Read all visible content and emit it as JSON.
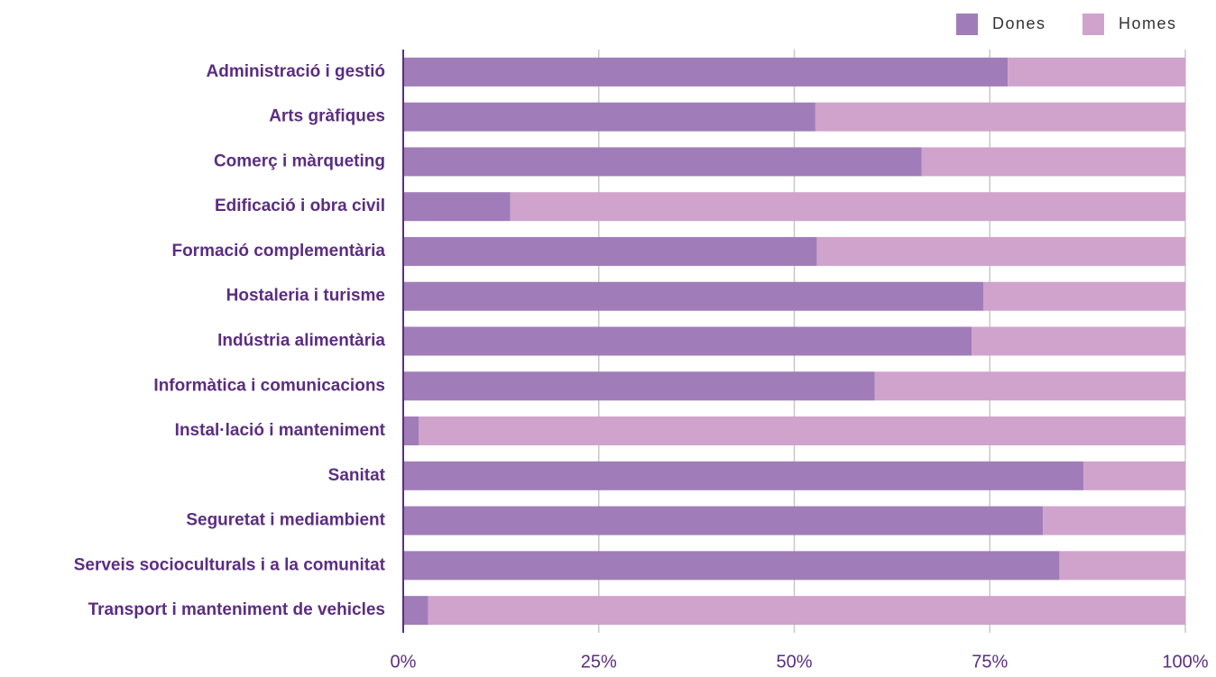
{
  "chart_data": {
    "type": "stacked-bar-horizontal",
    "categories": [
      "Administració i gestió",
      "Arts gràfiques",
      "Comerç i màrqueting",
      "Edificació i obra civil",
      "Formació complementària",
      "Hostaleria i turisme",
      "Indústria alimentària",
      "Informàtica i comunicacions",
      "Instal·lació i manteniment",
      "Sanitat",
      "Seguretat i mediambient",
      "Serveis socioculturals i a la comunitat",
      "Transport i manteniment de vehicles"
    ],
    "series": [
      {
        "name": "Dones",
        "color": "#a07db8",
        "values": [
          77.3,
          52.7,
          66.3,
          13.7,
          52.9,
          74.2,
          72.7,
          60.3,
          2.0,
          87.0,
          81.8,
          83.9,
          3.2
        ]
      },
      {
        "name": "Homes",
        "color": "#d0a3cc",
        "values": [
          22.7,
          47.3,
          33.7,
          86.3,
          47.1,
          25.8,
          27.3,
          39.7,
          98.0,
          13.0,
          18.2,
          16.1,
          96.8
        ]
      }
    ],
    "xlim": [
      0,
      100
    ],
    "xticks": [
      {
        "value": 0,
        "label": "0%"
      },
      {
        "value": 25,
        "label": "25%"
      },
      {
        "value": 50,
        "label": "50%"
      },
      {
        "value": 75,
        "label": "75%"
      },
      {
        "value": 100,
        "label": "100%"
      }
    ],
    "grid": true,
    "legend": "top-right"
  }
}
